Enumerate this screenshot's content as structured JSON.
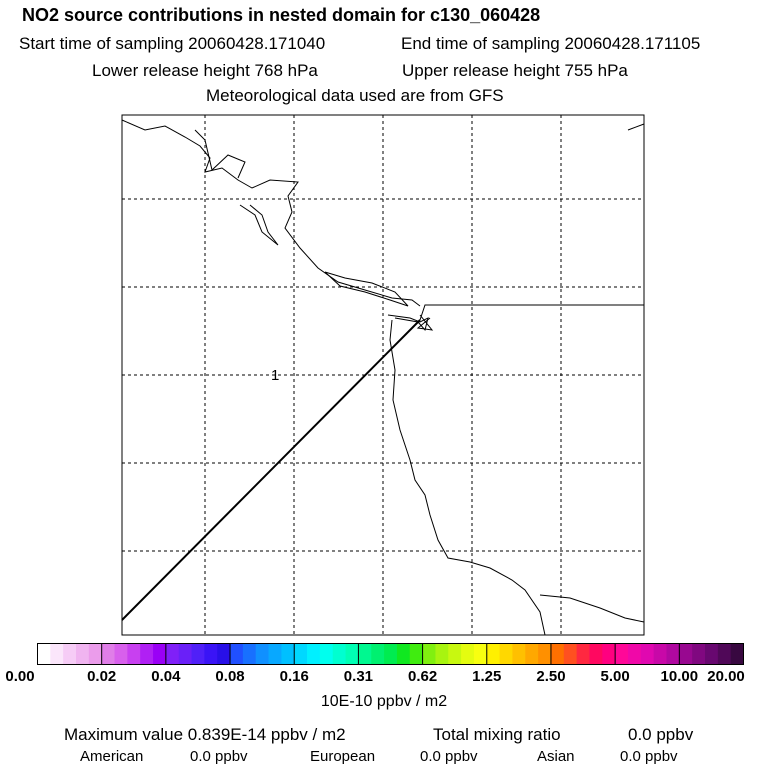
{
  "header": {
    "title": "NO2 source contributions in nested domain for c130_060428",
    "start_label": "Start time of sampling 20060428.171040",
    "end_label": "End time of sampling 20060428.171105",
    "lower_label": "Lower release height  768 hPa",
    "upper_label": "Upper release height  755 hPa",
    "met_label": "Meteorological data used are from GFS"
  },
  "map": {
    "marker_label": "1"
  },
  "colorbar": {
    "ticks": [
      "0.00",
      "0.02",
      "0.04",
      "0.08",
      "0.16",
      "0.31",
      "0.62",
      "1.25",
      "2.50",
      "5.00",
      "10.00",
      "20.00"
    ],
    "colors": [
      "#ffffff",
      "#fbe6fb",
      "#f6ccf6",
      "#f0b4f0",
      "#eb9ceb",
      "#e07ee8",
      "#d860ec",
      "#c840f0",
      "#b020f4",
      "#9a00f6",
      "#8020f8",
      "#6a20f8",
      "#5020f8",
      "#3a14f6",
      "#2810e8",
      "#2050ff",
      "#1870ff",
      "#1090ff",
      "#08a8ff",
      "#00c0ff",
      "#00d8ff",
      "#00f0ff",
      "#00ffee",
      "#00ffd0",
      "#00ffb4",
      "#00f890",
      "#00f070",
      "#00ec50",
      "#10e820",
      "#40ec10",
      "#80f010",
      "#a8f410",
      "#c8f810",
      "#e4fc10",
      "#f8ff10",
      "#fff000",
      "#ffd800",
      "#ffc000",
      "#ffa800",
      "#ff9000",
      "#ff7000",
      "#ff5020",
      "#ff2840",
      "#ff0860",
      "#ff0080",
      "#ff0898",
      "#f008a8",
      "#e008b0",
      "#c808a8",
      "#b008a0",
      "#980890",
      "#800880",
      "#680870",
      "#500858",
      "#380840"
    ],
    "units": "10E-10 ppbv / m2"
  },
  "footer": {
    "max_label": "Maximum value  0.839E-14 ppbv / m2",
    "total_label": "Total mixing ratio",
    "total_value": "0.0 ppbv",
    "american_label": "American",
    "american_value": "0.0 ppbv",
    "european_label": "European",
    "european_value": "0.0 ppbv",
    "asian_label": "Asian",
    "asian_value": "0.0 ppbv"
  }
}
